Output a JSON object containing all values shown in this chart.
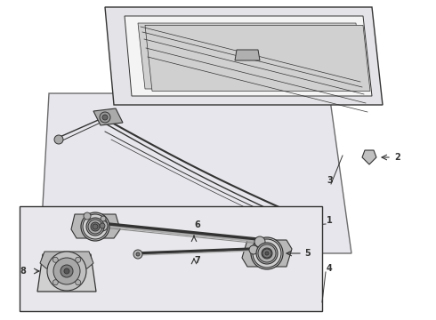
{
  "bg_color": "#ffffff",
  "line_color": "#333333",
  "fill_light": "#e8e8e8",
  "fill_mid": "#cccccc",
  "fill_dark": "#888888",
  "fill_white": "#ffffff",
  "blade_bg": "#e0e0e8",
  "arm_bg": "#d8d8e0"
}
